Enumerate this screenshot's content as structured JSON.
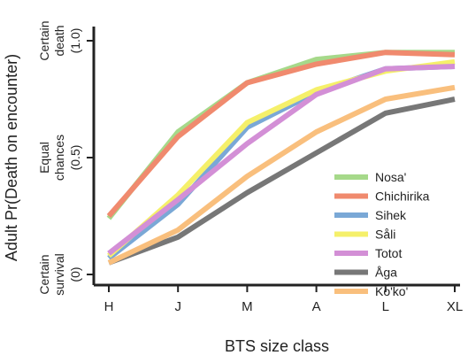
{
  "chart_data": {
    "type": "line",
    "title": "",
    "xlabel": "BTS size class",
    "ylabel": "Adult Pr(Death on encounter)",
    "categories": [
      "H",
      "J",
      "M",
      "A",
      "L",
      "XL"
    ],
    "ylim": [
      0,
      1
    ],
    "y_levels": [
      {
        "value": 0,
        "text": [
          "Certain",
          "survival"
        ],
        "number": "(0)"
      },
      {
        "value": 0.5,
        "text": [
          "Equal",
          "chances"
        ],
        "number": "(0.5)"
      },
      {
        "value": 1,
        "text": [
          "Certain",
          "death"
        ],
        "number": "(1.0)"
      }
    ],
    "grid": false,
    "legend_position": "lower-right",
    "series": [
      {
        "name": "Nosa'",
        "color": "#a6d98a",
        "values": [
          0.24,
          0.61,
          0.82,
          0.92,
          0.95,
          0.95
        ]
      },
      {
        "name": "Chichirika",
        "color": "#f08a6e",
        "values": [
          0.25,
          0.59,
          0.82,
          0.9,
          0.95,
          0.94
        ]
      },
      {
        "name": "Sihek",
        "color": "#7aa8d6",
        "values": [
          0.07,
          0.3,
          0.63,
          0.78,
          0.88,
          0.89
        ]
      },
      {
        "name": "Såli",
        "color": "#f5f06a",
        "values": [
          0.08,
          0.34,
          0.65,
          0.79,
          0.87,
          0.91
        ]
      },
      {
        "name": "Totot",
        "color": "#d38fd6",
        "values": [
          0.09,
          0.32,
          0.56,
          0.77,
          0.88,
          0.89
        ]
      },
      {
        "name": "Åga",
        "color": "#777777",
        "values": [
          0.05,
          0.16,
          0.35,
          0.52,
          0.69,
          0.75
        ]
      },
      {
        "name": "Ko'ko'",
        "color": "#f9bf7d",
        "values": [
          0.05,
          0.19,
          0.42,
          0.61,
          0.75,
          0.8
        ]
      }
    ]
  }
}
